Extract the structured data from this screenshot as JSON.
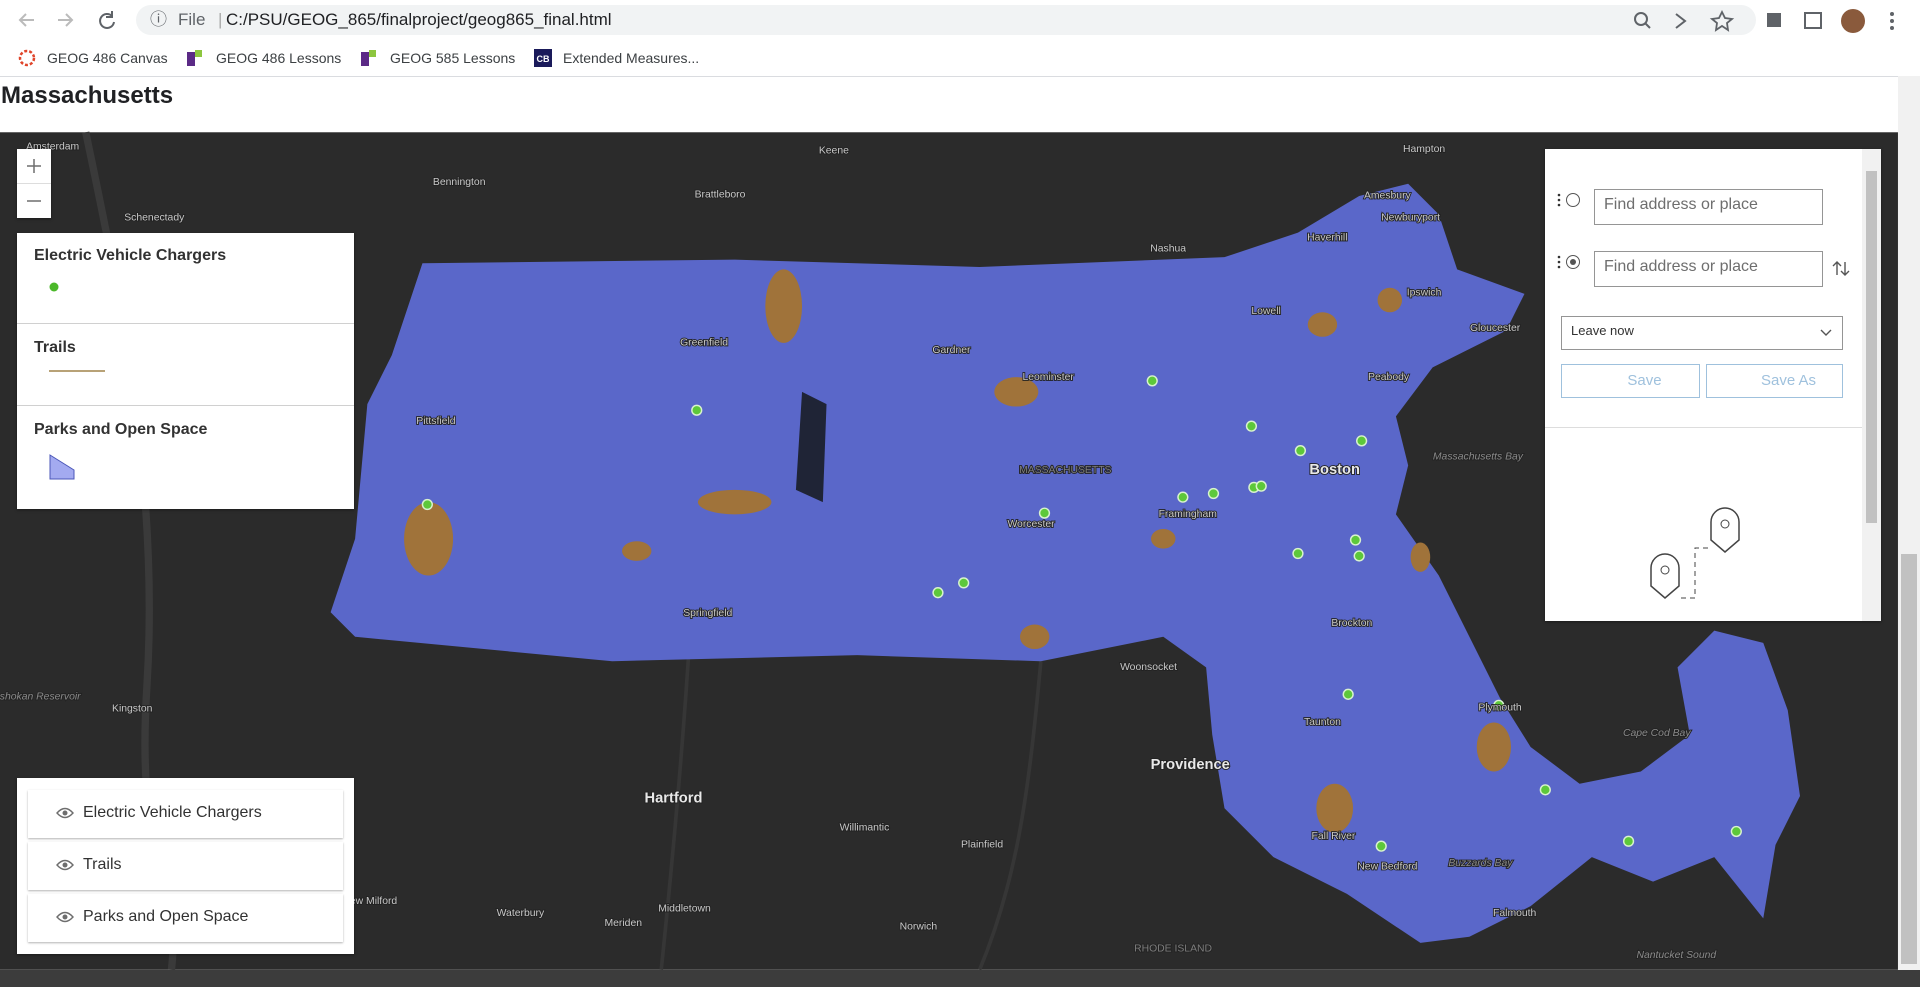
{
  "browser": {
    "scheme": "File",
    "url": "C:/PSU/GEOG_865/finalproject/geog865_final.html",
    "bookmarks": [
      "GEOG 486 Canvas",
      "GEOG 486 Lessons",
      "GEOG 585 Lessons",
      "Extended Measures..."
    ]
  },
  "page": {
    "title": "Massachusetts"
  },
  "legend": {
    "items": [
      "Electric Vehicle Chargers",
      "Trails",
      "Parks and Open Space"
    ]
  },
  "layer_list": {
    "items": [
      "Electric Vehicle Chargers",
      "Trails",
      "Parks and Open Space"
    ]
  },
  "directions": {
    "stops": [
      "Find address or place",
      "Find address or place"
    ],
    "depart": "Leave now",
    "buttons": [
      "Save",
      "Save As"
    ]
  },
  "map": {
    "labels": [
      "Amsterdam",
      "Schenectady",
      "Bennington",
      "Brattleboro",
      "Keene",
      "Nashua",
      "Hampton",
      "Amesbury",
      "Haverhill",
      "Newburyport",
      "Ipswich",
      "Gloucester",
      "Lowell",
      "Greenfield",
      "Gardner",
      "Leominster",
      "Pittsfield",
      "Peabody",
      "Massachusetts Bay",
      "Boston",
      "MASSACHUSETTS",
      "Framingham",
      "Worcester",
      "Springfield",
      "Brockton",
      "Woonsocket",
      "Ashokan Reservoir",
      "Kingston",
      "Taunton",
      "Plymouth",
      "Cape Cod Bay",
      "Providence",
      "Hartford",
      "Willimantic",
      "Plainfield",
      "Fall River",
      "New Bedford",
      "Buzzards Bay",
      "New Milford",
      "Waterbury",
      "Meriden",
      "Middletown",
      "Norwich",
      "Falmouth",
      "RHODE ISLAND",
      "Nantucket Sound"
    ]
  }
}
